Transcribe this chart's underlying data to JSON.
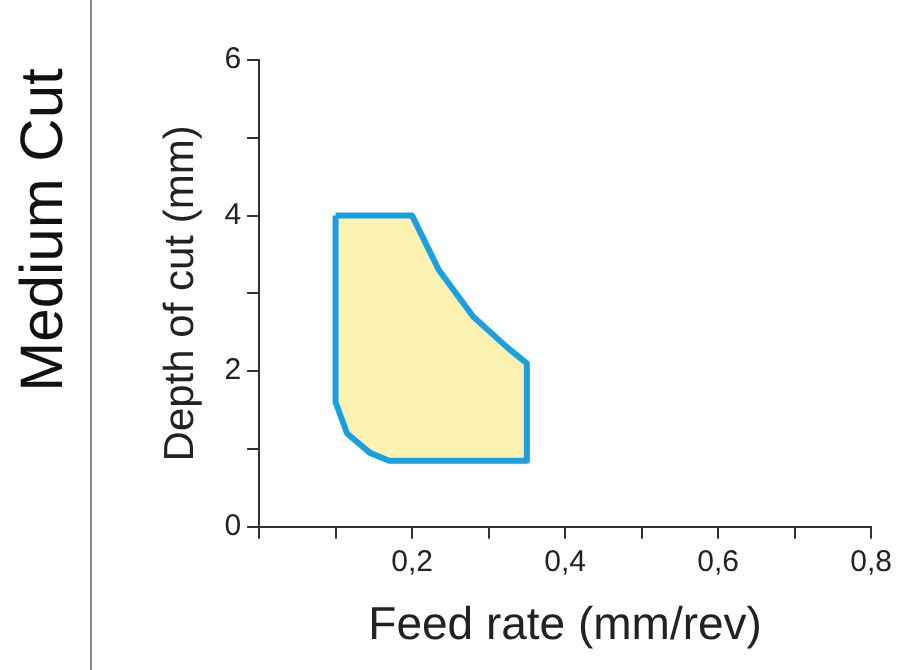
{
  "chart_data": {
    "type": "area",
    "title": "Medium Cut",
    "xlabel": "Feed rate (mm/rev)",
    "ylabel": "Depth of cut (mm)",
    "xlim": [
      0,
      0.8
    ],
    "ylim": [
      0,
      6
    ],
    "xticks": [
      {
        "value": 0,
        "label": null
      },
      {
        "value": 0.1,
        "label": null
      },
      {
        "value": 0.2,
        "label": "0,2"
      },
      {
        "value": 0.3,
        "label": null
      },
      {
        "value": 0.4,
        "label": "0,4"
      },
      {
        "value": 0.5,
        "label": null
      },
      {
        "value": 0.6,
        "label": "0,6"
      },
      {
        "value": 0.7,
        "label": null
      },
      {
        "value": 0.8,
        "label": "0,8"
      }
    ],
    "yticks": [
      0,
      {
        "value": 1,
        "label": null
      },
      2,
      {
        "value": 3,
        "label": null
      },
      4,
      {
        "value": 5,
        "label": null
      },
      6
    ],
    "marker": "none",
    "series": [
      {
        "color": "#fdf2b2",
        "x": [
          0.1,
          0.2,
          0.235,
          0.28,
          0.325,
          0.35,
          0.35,
          0.17,
          0.145,
          0.115,
          0.1,
          0.1
        ],
        "values": [
          4,
          4,
          3.3,
          2.7,
          2.3,
          2.1,
          0.85,
          0.85,
          0.95,
          1.2,
          1.6,
          4
        ]
      }
    ]
  }
}
